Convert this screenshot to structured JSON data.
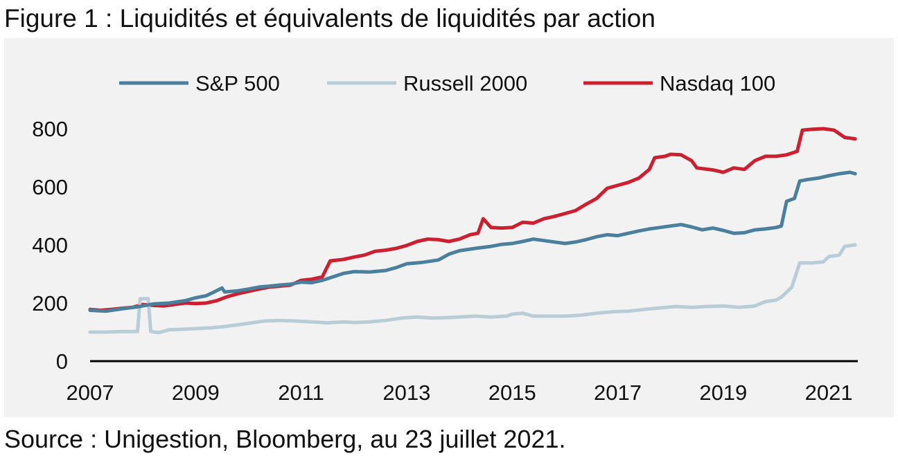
{
  "title": "Figure 1 : Liquidités et équivalents de liquidités par action",
  "source": "Source : Unigestion, Bloomberg, au 23 juillet 2021.",
  "chart_data": {
    "type": "line",
    "title": "Figure 1 : Liquidités et équivalents de liquidités par action",
    "xlabel": "",
    "ylabel": "",
    "xlim": [
      2007.0,
      2021.55
    ],
    "ylim": [
      0,
      800
    ],
    "x_ticks": [
      2007,
      2009,
      2011,
      2013,
      2015,
      2017,
      2019,
      2021
    ],
    "y_ticks": [
      0,
      200,
      400,
      600,
      800
    ],
    "grid": false,
    "legend": "top",
    "series": [
      {
        "name": "S&P 500",
        "color": "#4a7f9e",
        "points": [
          [
            2007.0,
            175
          ],
          [
            2007.3,
            172
          ],
          [
            2007.6,
            180
          ],
          [
            2007.9,
            187
          ],
          [
            2008.2,
            197
          ],
          [
            2008.5,
            200
          ],
          [
            2008.8,
            208
          ],
          [
            2009.0,
            218
          ],
          [
            2009.2,
            225
          ],
          [
            2009.35,
            238
          ],
          [
            2009.5,
            252
          ],
          [
            2009.55,
            238
          ],
          [
            2009.8,
            242
          ],
          [
            2010.0,
            248
          ],
          [
            2010.2,
            255
          ],
          [
            2010.4,
            258
          ],
          [
            2010.6,
            262
          ],
          [
            2010.8,
            265
          ],
          [
            2011.0,
            272
          ],
          [
            2011.2,
            270
          ],
          [
            2011.4,
            278
          ],
          [
            2011.6,
            290
          ],
          [
            2011.8,
            302
          ],
          [
            2012.0,
            308
          ],
          [
            2012.3,
            307
          ],
          [
            2012.6,
            312
          ],
          [
            2012.8,
            322
          ],
          [
            2013.0,
            335
          ],
          [
            2013.3,
            340
          ],
          [
            2013.6,
            348
          ],
          [
            2013.8,
            368
          ],
          [
            2014.0,
            380
          ],
          [
            2014.3,
            388
          ],
          [
            2014.6,
            395
          ],
          [
            2014.8,
            402
          ],
          [
            2015.0,
            405
          ],
          [
            2015.2,
            412
          ],
          [
            2015.4,
            420
          ],
          [
            2015.6,
            415
          ],
          [
            2015.8,
            410
          ],
          [
            2016.0,
            405
          ],
          [
            2016.2,
            410
          ],
          [
            2016.4,
            418
          ],
          [
            2016.6,
            428
          ],
          [
            2016.8,
            435
          ],
          [
            2017.0,
            432
          ],
          [
            2017.2,
            440
          ],
          [
            2017.4,
            448
          ],
          [
            2017.6,
            455
          ],
          [
            2017.8,
            460
          ],
          [
            2018.0,
            465
          ],
          [
            2018.2,
            470
          ],
          [
            2018.4,
            462
          ],
          [
            2018.6,
            452
          ],
          [
            2018.8,
            458
          ],
          [
            2019.0,
            450
          ],
          [
            2019.2,
            440
          ],
          [
            2019.4,
            442
          ],
          [
            2019.6,
            452
          ],
          [
            2019.8,
            455
          ],
          [
            2020.0,
            460
          ],
          [
            2020.1,
            465
          ],
          [
            2020.2,
            550
          ],
          [
            2020.35,
            560
          ],
          [
            2020.45,
            620
          ],
          [
            2020.6,
            625
          ],
          [
            2020.8,
            630
          ],
          [
            2021.0,
            638
          ],
          [
            2021.2,
            645
          ],
          [
            2021.4,
            650
          ],
          [
            2021.5,
            645
          ]
        ]
      },
      {
        "name": "Russell 2000",
        "color": "#b9cdd8",
        "points": [
          [
            2007.0,
            100
          ],
          [
            2007.3,
            100
          ],
          [
            2007.6,
            102
          ],
          [
            2007.9,
            102
          ],
          [
            2007.95,
            215
          ],
          [
            2008.1,
            215
          ],
          [
            2008.15,
            102
          ],
          [
            2008.3,
            98
          ],
          [
            2008.5,
            108
          ],
          [
            2008.8,
            110
          ],
          [
            2009.0,
            112
          ],
          [
            2009.3,
            115
          ],
          [
            2009.5,
            118
          ],
          [
            2009.8,
            125
          ],
          [
            2010.0,
            130
          ],
          [
            2010.3,
            138
          ],
          [
            2010.6,
            140
          ],
          [
            2010.9,
            138
          ],
          [
            2011.2,
            135
          ],
          [
            2011.5,
            132
          ],
          [
            2011.8,
            135
          ],
          [
            2012.0,
            133
          ],
          [
            2012.3,
            135
          ],
          [
            2012.6,
            140
          ],
          [
            2012.9,
            148
          ],
          [
            2013.2,
            152
          ],
          [
            2013.5,
            148
          ],
          [
            2013.8,
            150
          ],
          [
            2014.0,
            152
          ],
          [
            2014.3,
            155
          ],
          [
            2014.6,
            152
          ],
          [
            2014.9,
            155
          ],
          [
            2015.0,
            162
          ],
          [
            2015.2,
            165
          ],
          [
            2015.4,
            155
          ],
          [
            2015.7,
            155
          ],
          [
            2016.0,
            155
          ],
          [
            2016.3,
            158
          ],
          [
            2016.6,
            165
          ],
          [
            2016.9,
            170
          ],
          [
            2017.2,
            172
          ],
          [
            2017.5,
            178
          ],
          [
            2017.8,
            183
          ],
          [
            2018.1,
            188
          ],
          [
            2018.4,
            185
          ],
          [
            2018.7,
            188
          ],
          [
            2019.0,
            190
          ],
          [
            2019.3,
            185
          ],
          [
            2019.6,
            190
          ],
          [
            2019.8,
            205
          ],
          [
            2020.0,
            210
          ],
          [
            2020.1,
            220
          ],
          [
            2020.3,
            255
          ],
          [
            2020.45,
            338
          ],
          [
            2020.7,
            338
          ],
          [
            2020.9,
            342
          ],
          [
            2021.0,
            360
          ],
          [
            2021.2,
            365
          ],
          [
            2021.3,
            395
          ],
          [
            2021.5,
            400
          ]
        ]
      },
      {
        "name": "Nasdaq 100",
        "color": "#cc1f2f",
        "points": [
          [
            2007.0,
            178
          ],
          [
            2007.2,
            175
          ],
          [
            2007.4,
            178
          ],
          [
            2007.6,
            182
          ],
          [
            2007.8,
            185
          ],
          [
            2008.0,
            195
          ],
          [
            2008.2,
            192
          ],
          [
            2008.4,
            190
          ],
          [
            2008.6,
            195
          ],
          [
            2008.8,
            200
          ],
          [
            2009.0,
            198
          ],
          [
            2009.2,
            200
          ],
          [
            2009.4,
            208
          ],
          [
            2009.6,
            222
          ],
          [
            2009.8,
            232
          ],
          [
            2010.0,
            240
          ],
          [
            2010.2,
            248
          ],
          [
            2010.4,
            255
          ],
          [
            2010.6,
            258
          ],
          [
            2010.8,
            262
          ],
          [
            2011.0,
            278
          ],
          [
            2011.2,
            282
          ],
          [
            2011.4,
            290
          ],
          [
            2011.55,
            345
          ],
          [
            2011.8,
            350
          ],
          [
            2012.0,
            358
          ],
          [
            2012.2,
            365
          ],
          [
            2012.4,
            378
          ],
          [
            2012.6,
            382
          ],
          [
            2012.8,
            388
          ],
          [
            2013.0,
            398
          ],
          [
            2013.2,
            412
          ],
          [
            2013.4,
            420
          ],
          [
            2013.6,
            418
          ],
          [
            2013.8,
            412
          ],
          [
            2014.0,
            420
          ],
          [
            2014.2,
            435
          ],
          [
            2014.35,
            440
          ],
          [
            2014.45,
            490
          ],
          [
            2014.6,
            460
          ],
          [
            2014.8,
            458
          ],
          [
            2015.0,
            460
          ],
          [
            2015.2,
            478
          ],
          [
            2015.4,
            475
          ],
          [
            2015.6,
            490
          ],
          [
            2015.8,
            498
          ],
          [
            2016.0,
            508
          ],
          [
            2016.2,
            518
          ],
          [
            2016.4,
            540
          ],
          [
            2016.6,
            560
          ],
          [
            2016.8,
            595
          ],
          [
            2017.0,
            605
          ],
          [
            2017.2,
            615
          ],
          [
            2017.4,
            630
          ],
          [
            2017.6,
            660
          ],
          [
            2017.7,
            700
          ],
          [
            2017.9,
            705
          ],
          [
            2018.0,
            712
          ],
          [
            2018.2,
            710
          ],
          [
            2018.4,
            690
          ],
          [
            2018.5,
            665
          ],
          [
            2018.8,
            658
          ],
          [
            2019.0,
            650
          ],
          [
            2019.2,
            665
          ],
          [
            2019.4,
            660
          ],
          [
            2019.6,
            690
          ],
          [
            2019.8,
            705
          ],
          [
            2020.0,
            705
          ],
          [
            2020.2,
            710
          ],
          [
            2020.4,
            722
          ],
          [
            2020.5,
            795
          ],
          [
            2020.7,
            798
          ],
          [
            2020.9,
            800
          ],
          [
            2021.1,
            795
          ],
          [
            2021.3,
            770
          ],
          [
            2021.5,
            765
          ]
        ]
      }
    ]
  }
}
